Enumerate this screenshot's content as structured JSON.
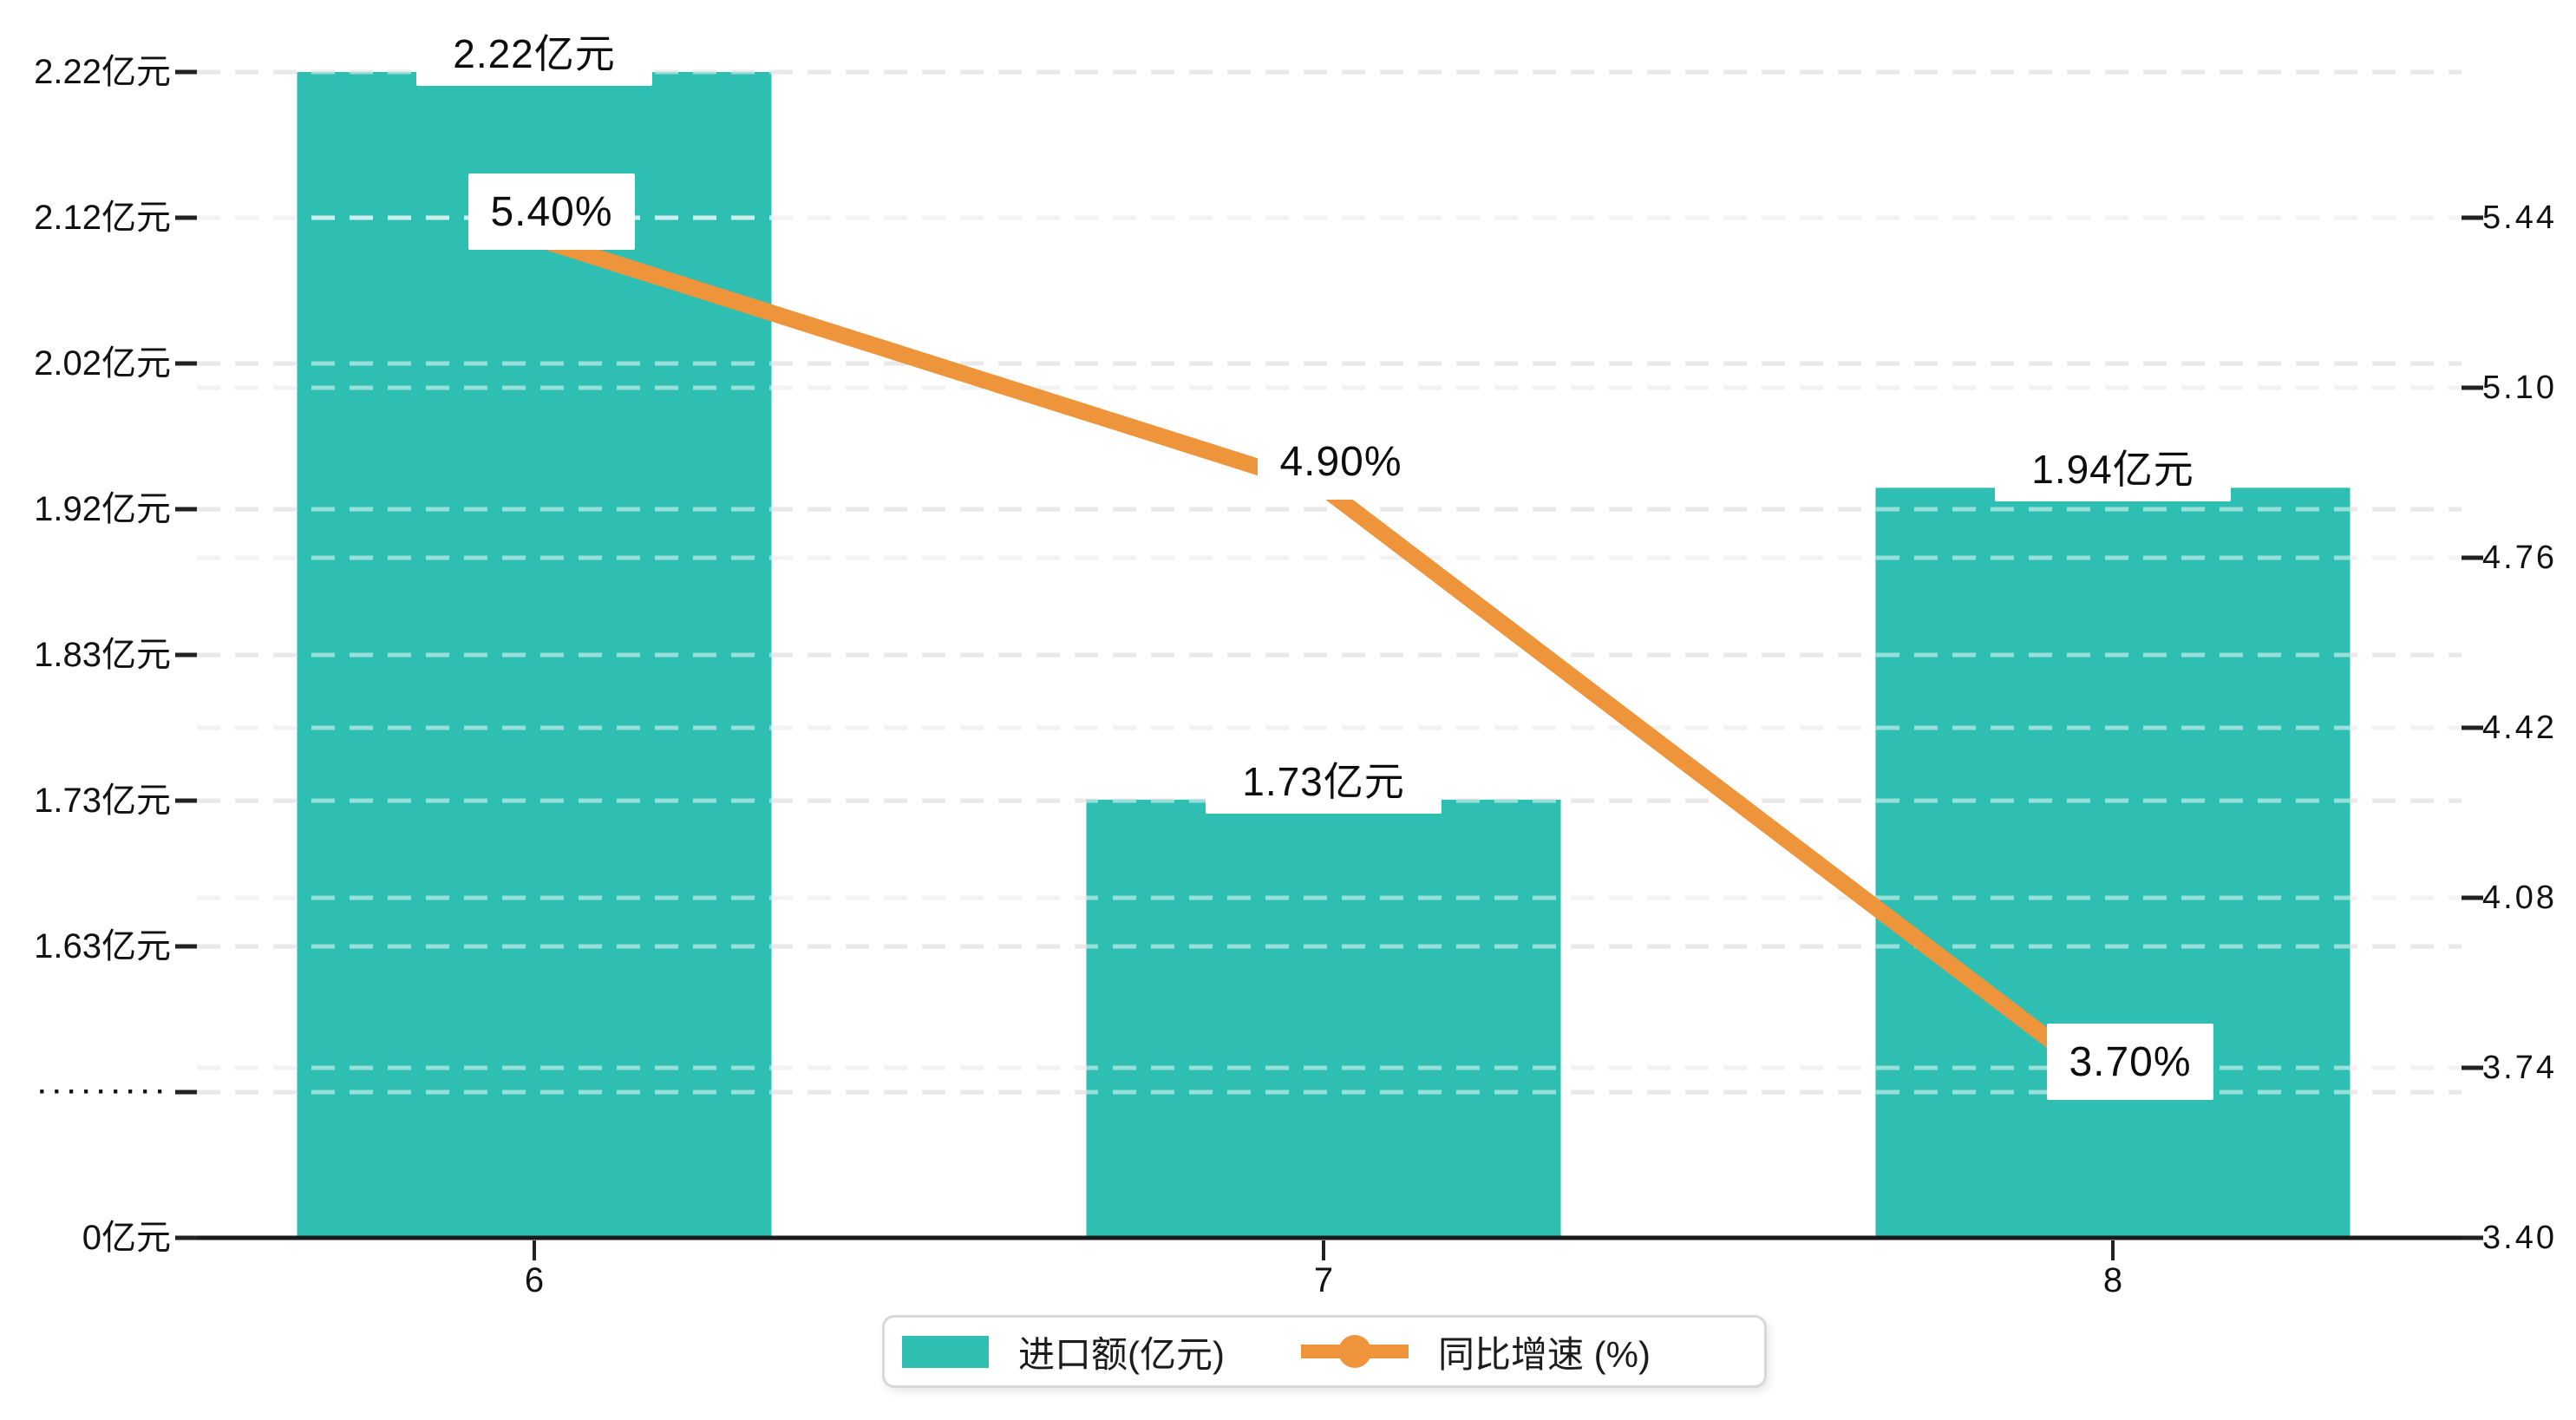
{
  "chart_data": {
    "type": "bar",
    "subtype": "bar-line-combo",
    "title": "",
    "categories": [
      "6",
      "7",
      "8"
    ],
    "series": [
      {
        "name": "进口额(亿元)",
        "type": "bar",
        "axis": "left",
        "unit": "亿元",
        "values": [
          2.22,
          1.73,
          1.94
        ],
        "data_labels": [
          "2.22亿元",
          "1.73亿元",
          "1.94亿元"
        ],
        "color": "#2fbeb2"
      },
      {
        "name": "同比增速 (%)",
        "type": "line",
        "axis": "right",
        "unit": "%",
        "values": [
          5.4,
          4.9,
          3.7
        ],
        "data_labels": [
          "5.40%",
          "4.90%",
          "3.70%"
        ],
        "color": "#ee943b"
      }
    ],
    "left_axis": {
      "tick_labels": [
        "2.22亿元",
        "2.12亿元",
        "2.02亿元",
        "1.92亿元",
        "1.83亿元",
        "1.73亿元",
        "1.63亿元",
        "·········",
        "0亿元"
      ],
      "broken_axis": true,
      "linear_top_value": 2.22,
      "linear_bottom_value": 1.63,
      "bottom_value": 0
    },
    "right_axis": {
      "tick_labels": [
        "5.44",
        "5.10",
        "4.76",
        "4.42",
        "4.08",
        "3.74",
        "3.40"
      ],
      "max": 5.44,
      "min": 3.4
    },
    "grid": "horizontal dashed gridlines, two families (left-axis rows and right-axis rows)",
    "legend_position": "bottom-center"
  },
  "legend": {
    "items": [
      {
        "label": "进口额(亿元)",
        "swatch": "bar-swatch",
        "color": "#2fbeb2"
      },
      {
        "label": "同比增速 (%)",
        "swatch": "line-dot-swatch",
        "color": "#ee943b"
      }
    ]
  },
  "colors": {
    "bar": "#2fbeb2",
    "line": "#ee943b",
    "axis_line": "#1a1a1a",
    "tick": "#222222",
    "grid_left_rows": "#e9e9e9",
    "grid_right_rows": "#f2f2f2",
    "grid_on_bars": "rgba(255,255,255,0.5)",
    "label_text": "#111111",
    "background": "#ffffff",
    "legend_border": "#d8d8d8"
  }
}
